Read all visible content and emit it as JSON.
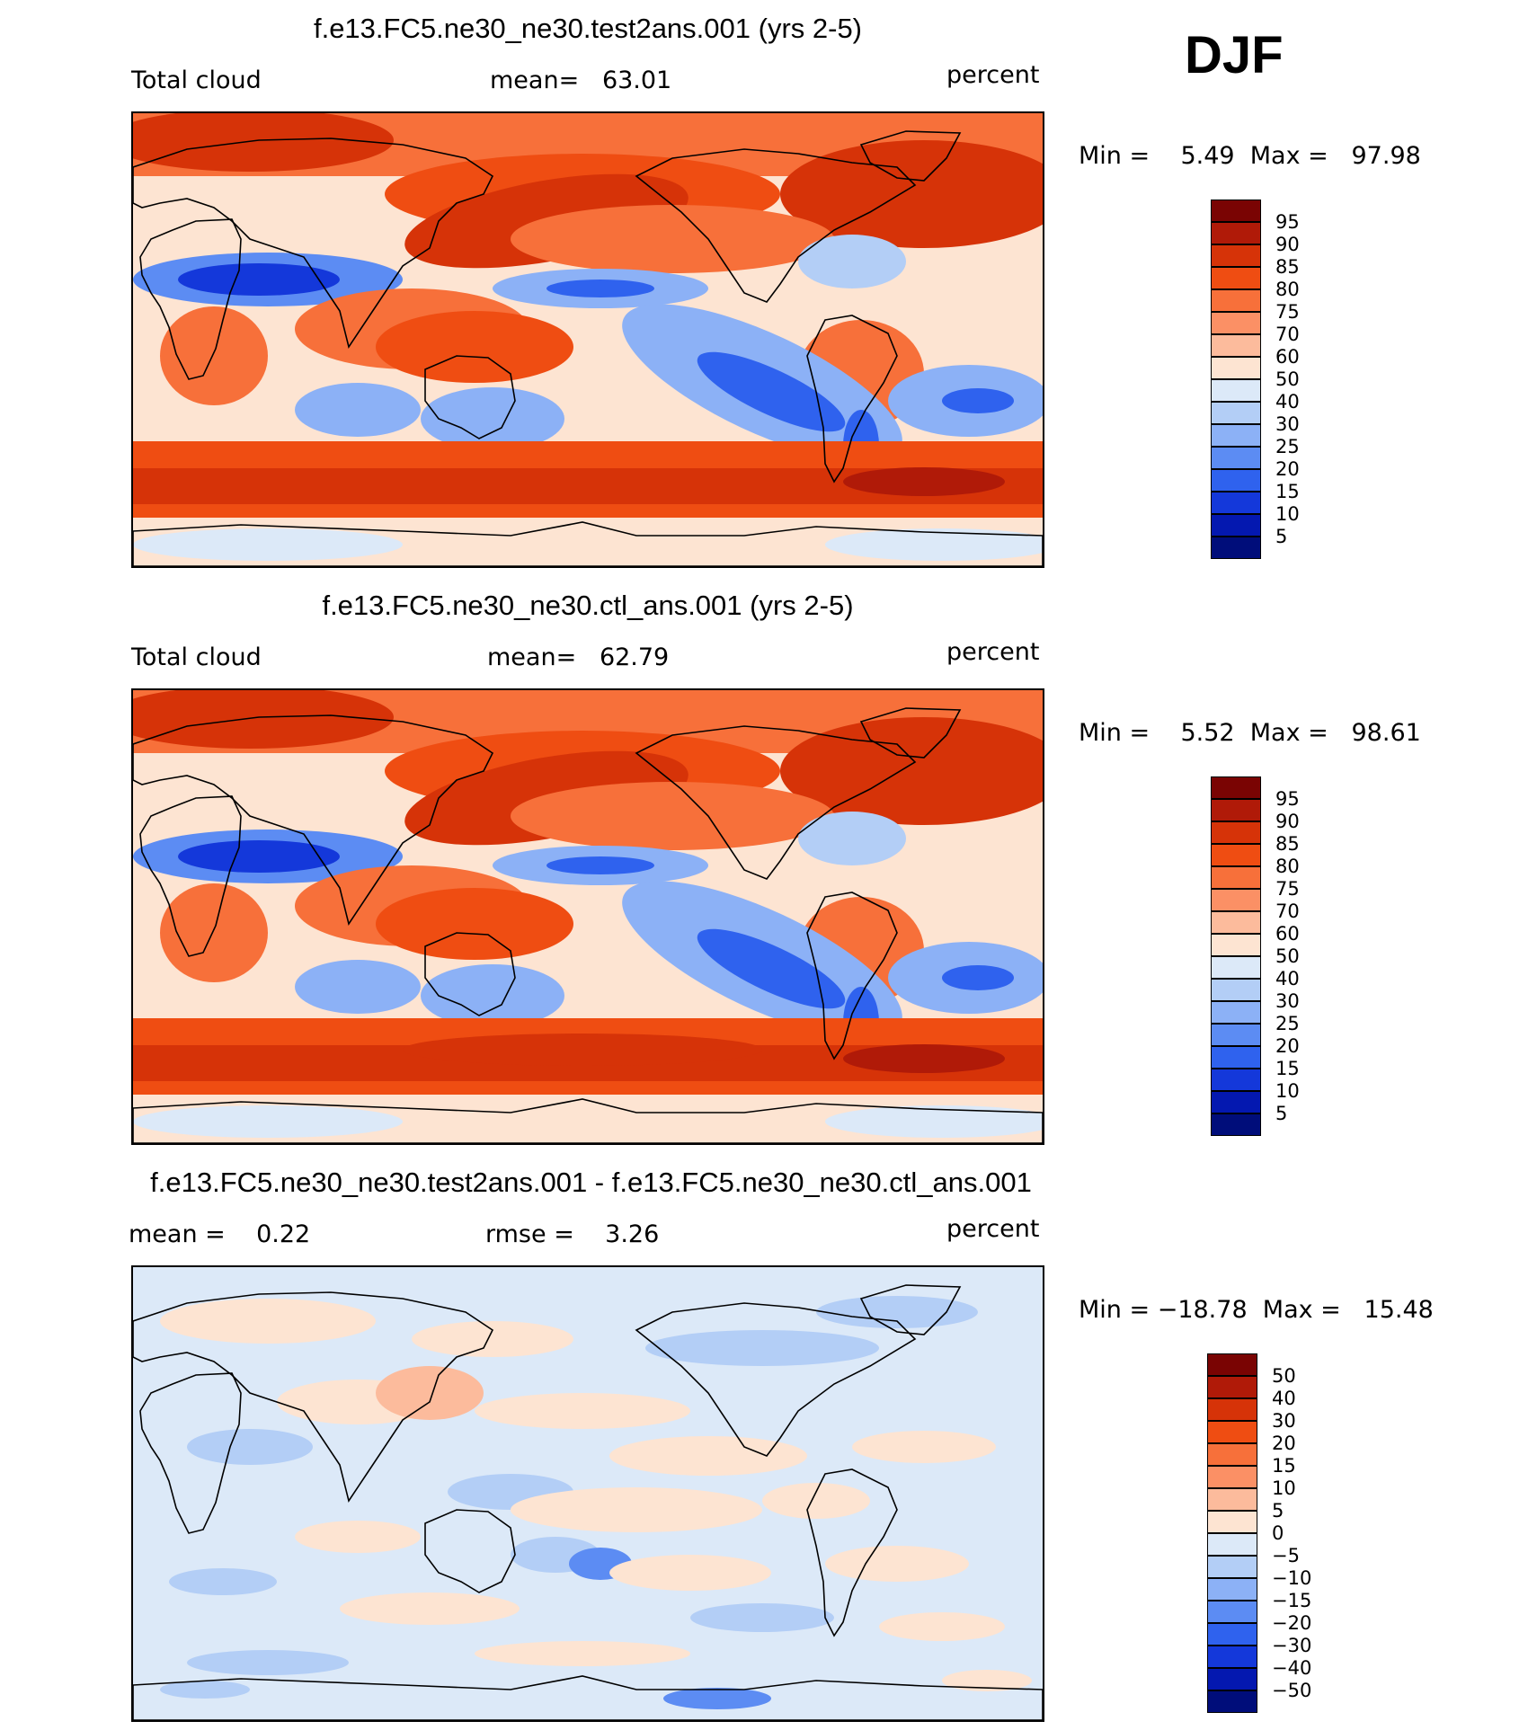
{
  "season": "DJF",
  "panels": [
    {
      "title": "f.e13.FC5.ne30_ne30.test2ans.001 (yrs 2-5)",
      "left_label": "Total cloud",
      "center_label": "mean=   63.01",
      "right_label": "percent",
      "minmax": "Min =    5.49  Max =   97.98",
      "kind": "abs"
    },
    {
      "title": "f.e13.FC5.ne30_ne30.ctl_ans.001 (yrs 2-5)",
      "left_label": "Total cloud",
      "center_label": "mean=   62.79",
      "right_label": "percent",
      "minmax": "Min =    5.52  Max =   98.61",
      "kind": "abs"
    },
    {
      "title": "f.e13.FC5.ne30_ne30.test2ans.001 - f.e13.FC5.ne30_ne30.ctl_ans.001",
      "left_label": "mean =    0.22",
      "center_label": "rmse =    3.26",
      "right_label": "percent",
      "minmax": "Min = −18.78  Max =   15.48",
      "kind": "diff"
    }
  ],
  "colorbar_abs": {
    "labels": [
      "95",
      "90",
      "85",
      "80",
      "75",
      "70",
      "60",
      "50",
      "40",
      "30",
      "25",
      "20",
      "15",
      "10",
      "5"
    ],
    "colors": [
      "#7a0403",
      "#b01a08",
      "#d63308",
      "#ef4d12",
      "#f7703a",
      "#fb9065",
      "#fcbb9c",
      "#fde4d2",
      "#dce9f8",
      "#b3cef6",
      "#8cb1f6",
      "#5c8cf3",
      "#2f62ee",
      "#1438da",
      "#0418b0",
      "#000d7a"
    ]
  },
  "colorbar_diff": {
    "labels": [
      "50",
      "40",
      "30",
      "20",
      "15",
      "10",
      "5",
      "0",
      "−5",
      "−10",
      "−15",
      "−20",
      "−30",
      "−40",
      "−50"
    ],
    "colors": [
      "#7a0403",
      "#b01a08",
      "#d63308",
      "#ef4d12",
      "#f7703a",
      "#fb9065",
      "#fcbb9c",
      "#fde4d2",
      "#dce9f8",
      "#b3cef6",
      "#8cb1f6",
      "#5c8cf3",
      "#2f62ee",
      "#1438da",
      "#0418b0",
      "#000d7a"
    ]
  }
}
